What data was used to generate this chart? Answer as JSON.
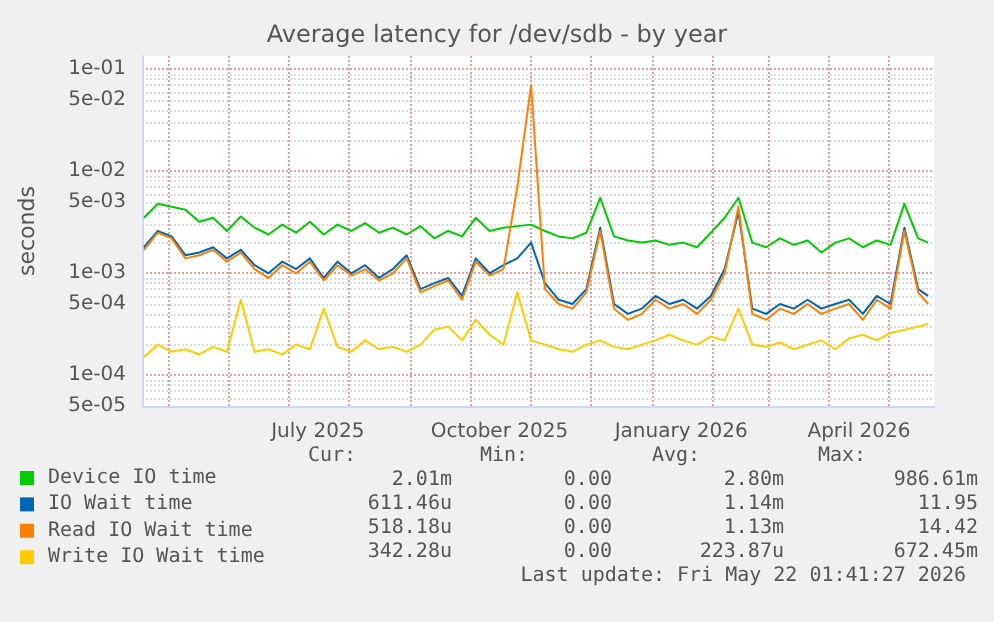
{
  "chart_data": {
    "type": "line",
    "title": "Average latency for /dev/sdb - by year",
    "ylabel": "seconds",
    "log": "y",
    "grid": true,
    "legend": "bottom",
    "marker": "none",
    "line_style": "solid",
    "xlim": [
      "2025-04-18",
      "2026-05-24"
    ],
    "xticks": [
      {
        "value": "2025-07-16",
        "label": "July 2025"
      },
      {
        "value": "2025-10-16",
        "label": "October 2025"
      },
      {
        "value": "2026-01-16",
        "label": "January 2026"
      },
      {
        "value": "2026-04-16",
        "label": "April 2026"
      }
    ],
    "ylim": [
      5e-05,
      0.135
    ],
    "yticks": [
      {
        "value": 0.1,
        "label": "1e-01"
      },
      {
        "value": 0.05,
        "label": "5e-02"
      },
      {
        "value": 0.01,
        "label": "1e-02"
      },
      {
        "value": 0.005,
        "label": "5e-03"
      },
      {
        "value": 0.001,
        "label": "1e-03"
      },
      {
        "value": 0.0005,
        "label": "5e-04"
      },
      {
        "value": 0.0001,
        "label": "1e-04"
      },
      {
        "value": 5e-05,
        "label": "5e-05"
      }
    ],
    "x": [
      "2025-04-19",
      "2025-04-26",
      "2025-05-03",
      "2025-05-10",
      "2025-05-17",
      "2025-05-24",
      "2025-05-31",
      "2025-06-07",
      "2025-06-14",
      "2025-06-21",
      "2025-06-28",
      "2025-07-05",
      "2025-07-12",
      "2025-07-19",
      "2025-07-26",
      "2025-08-02",
      "2025-08-09",
      "2025-08-16",
      "2025-08-23",
      "2025-08-30",
      "2025-09-06",
      "2025-09-13",
      "2025-09-20",
      "2025-09-27",
      "2025-10-04",
      "2025-10-11",
      "2025-10-18",
      "2025-10-25",
      "2025-11-01",
      "2025-11-08",
      "2025-11-15",
      "2025-11-22",
      "2025-11-29",
      "2025-12-06",
      "2025-12-13",
      "2025-12-20",
      "2025-12-27",
      "2026-01-03",
      "2026-01-10",
      "2026-01-17",
      "2026-01-24",
      "2026-01-31",
      "2026-02-07",
      "2026-02-14",
      "2026-02-21",
      "2026-02-28",
      "2026-03-07",
      "2026-03-14",
      "2026-03-21",
      "2026-03-28",
      "2026-04-04",
      "2026-04-11",
      "2026-04-18",
      "2026-04-25",
      "2026-05-02",
      "2026-05-09",
      "2026-05-16",
      "2026-05-21"
    ],
    "series": [
      {
        "name": "Device IO time",
        "color": "#00cc00",
        "values": [
          0.0035,
          0.0048,
          0.0045,
          0.0042,
          0.0032,
          0.0035,
          0.0026,
          0.0036,
          0.0028,
          0.0024,
          0.003,
          0.0025,
          0.0032,
          0.0024,
          0.003,
          0.0026,
          0.0031,
          0.0025,
          0.0028,
          0.0024,
          0.0029,
          0.0022,
          0.0026,
          0.0023,
          0.0035,
          0.0026,
          0.0028,
          0.0029,
          0.003,
          0.0026,
          0.0023,
          0.0022,
          0.0025,
          0.0055,
          0.0023,
          0.0021,
          0.002,
          0.0021,
          0.0019,
          0.002,
          0.0018,
          0.0025,
          0.0035,
          0.0055,
          0.002,
          0.0018,
          0.0022,
          0.0019,
          0.0021,
          0.0016,
          0.002,
          0.0022,
          0.0018,
          0.0021,
          0.0019,
          0.0048,
          0.0022,
          0.002
        ]
      },
      {
        "name": "IO Wait time",
        "color": "#0066b3",
        "values": [
          0.0018,
          0.0026,
          0.0023,
          0.0015,
          0.0016,
          0.0018,
          0.0014,
          0.0017,
          0.0012,
          0.001,
          0.0013,
          0.0011,
          0.0014,
          0.0009,
          0.0013,
          0.001,
          0.0012,
          0.0009,
          0.0011,
          0.0015,
          0.0007,
          0.0008,
          0.0009,
          0.0006,
          0.0014,
          0.001,
          0.0012,
          0.0014,
          0.002,
          0.0008,
          0.00055,
          0.0005,
          0.0007,
          0.0028,
          0.0005,
          0.0004,
          0.00045,
          0.0006,
          0.0005,
          0.00055,
          0.00045,
          0.0006,
          0.0011,
          0.004,
          0.00045,
          0.0004,
          0.0005,
          0.00045,
          0.00055,
          0.00045,
          0.0005,
          0.00055,
          0.0004,
          0.0006,
          0.0005,
          0.0028,
          0.0007,
          0.0006
        ]
      },
      {
        "name": "Read IO Wait time",
        "color": "#ff8000",
        "values": [
          0.0017,
          0.0025,
          0.0022,
          0.0014,
          0.0015,
          0.0017,
          0.0013,
          0.0016,
          0.0011,
          0.0009,
          0.0012,
          0.001,
          0.0013,
          0.00085,
          0.0012,
          0.00095,
          0.0011,
          0.00085,
          0.001,
          0.0014,
          0.00065,
          0.00075,
          0.00085,
          0.00055,
          0.0013,
          0.00095,
          0.0011,
          0.007,
          0.07,
          0.0007,
          0.0005,
          0.00045,
          0.00065,
          0.0026,
          0.00045,
          0.00035,
          0.0004,
          0.00055,
          0.00045,
          0.0005,
          0.0004,
          0.00055,
          0.001,
          0.0045,
          0.0004,
          0.00035,
          0.00045,
          0.0004,
          0.0005,
          0.0004,
          0.00045,
          0.0005,
          0.00035,
          0.00055,
          0.00045,
          0.0026,
          0.00065,
          0.0005
        ]
      },
      {
        "name": "Write IO Wait time",
        "color": "#ffcc00",
        "values": [
          0.00015,
          0.0002,
          0.00017,
          0.00018,
          0.00016,
          0.00019,
          0.00017,
          0.00055,
          0.00017,
          0.00018,
          0.00016,
          0.0002,
          0.00018,
          0.00045,
          0.00019,
          0.00017,
          0.00022,
          0.00018,
          0.00019,
          0.00017,
          0.0002,
          0.00028,
          0.0003,
          0.00022,
          0.00035,
          0.00025,
          0.0002,
          0.00065,
          0.00022,
          0.0002,
          0.00018,
          0.00017,
          0.0002,
          0.00022,
          0.00019,
          0.00018,
          0.0002,
          0.00022,
          0.00025,
          0.00022,
          0.0002,
          0.00024,
          0.00022,
          0.00045,
          0.0002,
          0.00019,
          0.00021,
          0.00018,
          0.0002,
          0.00022,
          0.00018,
          0.00023,
          0.00025,
          0.00022,
          0.00026,
          0.00028,
          0.0003,
          0.00032
        ]
      }
    ],
    "annotations": [
      "Cur:",
      "Min:",
      "Avg:",
      "Max:",
      "2.01m",
      "0.00",
      "2.80m",
      "986.61m",
      "611.46u",
      "0.00",
      "1.14m",
      "11.95",
      "518.18u",
      "0.00",
      "1.13m",
      "14.42",
      "342.28u",
      "0.00",
      "223.87u",
      "672.45m",
      "Last update: Fri May 22 01:41:27 2026"
    ]
  }
}
